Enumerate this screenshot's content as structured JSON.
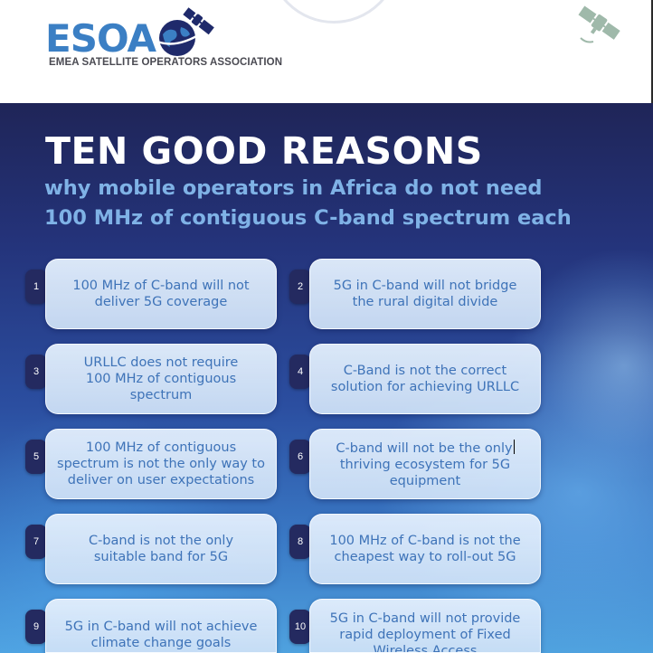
{
  "header": {
    "logo_text": "ESOA",
    "logo_subtitle": "EMEA SATELLITE OPERATORS ASSOCIATION",
    "logo_icon": "satellite-globe-icon",
    "top_right_icon": "satellite-icon",
    "colors": {
      "logo_blue": "#3b7fc4",
      "logo_navy": "#1f2a6b",
      "icon_green": "#9fb9aa"
    }
  },
  "poster": {
    "title": "TEN GOOD REASONS",
    "subtitle_line1": "why mobile operators in Africa do not need",
    "subtitle_line2": "100 MHz of contiguous C-band spectrum each",
    "colors": {
      "background_top": "#1f2558",
      "background_bottom": "#4fa2df",
      "subtitle": "#7fb2e6",
      "card_text": "#3e73b8",
      "number_badge": "#242a60"
    },
    "reasons": [
      {
        "number": "1",
        "lines": [
          "100 MHz of C-band will not",
          "deliver 5G coverage"
        ]
      },
      {
        "number": "2",
        "lines": [
          "5G in C-band will not bridge",
          "the rural digital divide"
        ]
      },
      {
        "number": "3",
        "lines": [
          "URLLC does not require",
          "100 MHz of contiguous",
          "spectrum"
        ]
      },
      {
        "number": "4",
        "lines": [
          "C-Band is not the correct",
          "solution for achieving URLLC"
        ]
      },
      {
        "number": "5",
        "lines": [
          "100 MHz of contiguous",
          "spectrum is not the only way to",
          "deliver on user expectations"
        ]
      },
      {
        "number": "6",
        "lines": [
          "C-band will not be the only",
          "thriving ecosystem for 5G",
          "equipment"
        ]
      },
      {
        "number": "7",
        "lines": [
          "C-band is not the only",
          "suitable band for 5G"
        ]
      },
      {
        "number": "8",
        "lines": [
          "100 MHz of C-band is not the",
          "cheapest way to roll-out 5G"
        ]
      },
      {
        "number": "9",
        "lines": [
          "5G in C-band will not achieve",
          "climate change goals"
        ]
      },
      {
        "number": "10",
        "lines": [
          "5G in C-band will not provide",
          "rapid deployment of Fixed",
          "Wireless Access"
        ]
      }
    ]
  }
}
